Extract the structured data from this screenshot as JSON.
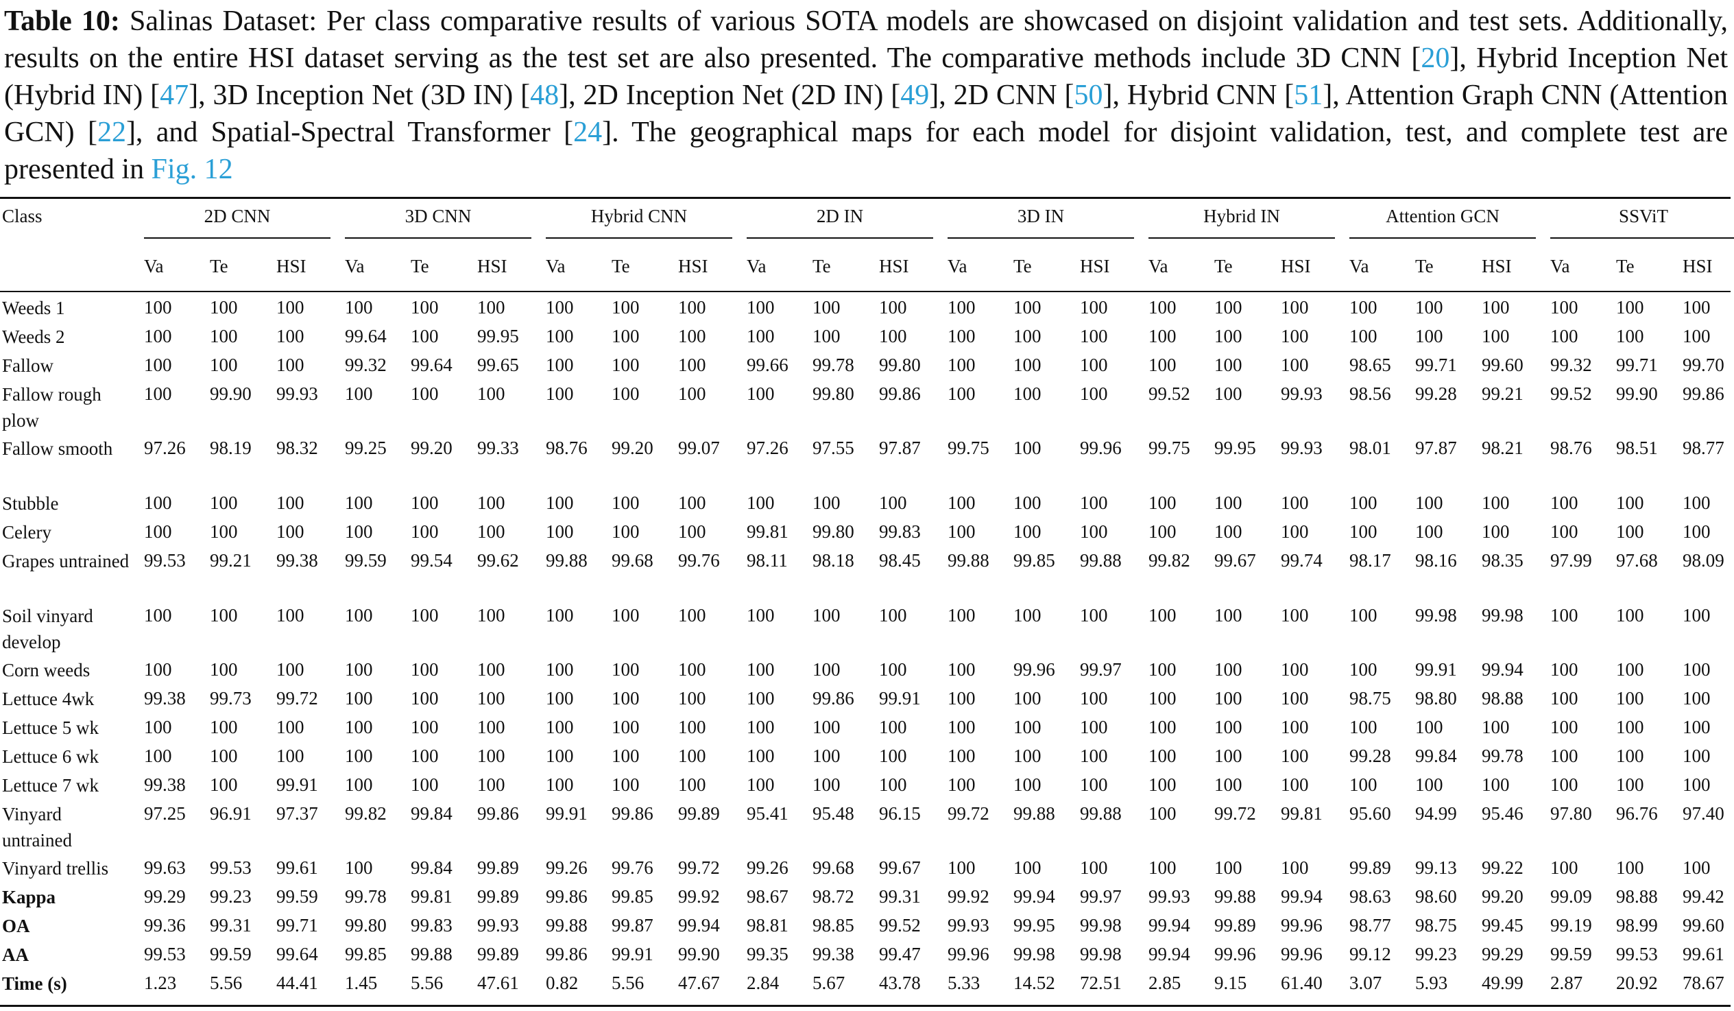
{
  "caption": {
    "label": "Table 10:",
    "segments": [
      {
        "text": " Salinas Dataset: Per class comparative results of various SOTA models are showcased on disjoint validation and test sets. Additionally, results on the entire HSI dataset serving as the test set are also presented. The comparative methods include 3D CNN [",
        "link": false
      },
      {
        "text": "20",
        "link": true
      },
      {
        "text": "], Hybrid Inception Net (Hybrid IN) [",
        "link": false
      },
      {
        "text": "47",
        "link": true
      },
      {
        "text": "], 3D Inception Net (3D IN) [",
        "link": false
      },
      {
        "text": "48",
        "link": true
      },
      {
        "text": "], 2D Inception Net (2D IN) [",
        "link": false
      },
      {
        "text": "49",
        "link": true
      },
      {
        "text": "], 2D CNN [",
        "link": false
      },
      {
        "text": "50",
        "link": true
      },
      {
        "text": "], Hybrid CNN [",
        "link": false
      },
      {
        "text": "51",
        "link": true
      },
      {
        "text": "], Attention Graph CNN (Attention GCN) [",
        "link": false
      },
      {
        "text": "22",
        "link": true
      },
      {
        "text": "], and Spatial-Spectral Transformer [",
        "link": false
      },
      {
        "text": "24",
        "link": true
      },
      {
        "text": "]. The geographical maps for each model for disjoint validation, test, and complete test are presented in ",
        "link": false
      },
      {
        "text": "Fig. 12",
        "link": true
      }
    ]
  },
  "table": {
    "class_header": "Class",
    "models": [
      "2D CNN",
      "3D CNN",
      "Hybrid CNN",
      "2D IN",
      "3D IN",
      "Hybrid IN",
      "Attention GCN",
      "SSViT"
    ],
    "subheaders": [
      "Va",
      "Te",
      "HSI"
    ],
    "rows": [
      {
        "label": "Weeds 1",
        "bold": false,
        "values": [
          "100",
          "100",
          "100",
          "100",
          "100",
          "100",
          "100",
          "100",
          "100",
          "100",
          "100",
          "100",
          "100",
          "100",
          "100",
          "100",
          "100",
          "100",
          "100",
          "100",
          "100",
          "100",
          "100",
          "100"
        ]
      },
      {
        "label": "Weeds 2",
        "bold": false,
        "values": [
          "100",
          "100",
          "100",
          "99.64",
          "100",
          "99.95",
          "100",
          "100",
          "100",
          "100",
          "100",
          "100",
          "100",
          "100",
          "100",
          "100",
          "100",
          "100",
          "100",
          "100",
          "100",
          "100",
          "100",
          "100"
        ]
      },
      {
        "label": "Fallow",
        "bold": false,
        "values": [
          "100",
          "100",
          "100",
          "99.32",
          "99.64",
          "99.65",
          "100",
          "100",
          "100",
          "99.66",
          "99.78",
          "99.80",
          "100",
          "100",
          "100",
          "100",
          "100",
          "100",
          "98.65",
          "99.71",
          "99.60",
          "99.32",
          "99.71",
          "99.70"
        ]
      },
      {
        "label": "Fallow rough plow",
        "bold": false,
        "values": [
          "100",
          "99.90",
          "99.93",
          "100",
          "100",
          "100",
          "100",
          "100",
          "100",
          "100",
          "99.80",
          "99.86",
          "100",
          "100",
          "100",
          "99.52",
          "100",
          "99.93",
          "98.56",
          "99.28",
          "99.21",
          "99.52",
          "99.90",
          "99.86"
        ]
      },
      {
        "label": "Fallow smooth",
        "bold": false,
        "values": [
          "97.26",
          "98.19",
          "98.32",
          "99.25",
          "99.20",
          "99.33",
          "98.76",
          "99.20",
          "99.07",
          "97.26",
          "97.55",
          "97.87",
          "99.75",
          "100",
          "99.96",
          "99.75",
          "99.95",
          "99.93",
          "98.01",
          "97.87",
          "98.21",
          "98.76",
          "98.51",
          "98.77"
        ]
      },
      {
        "label": "Stubble",
        "bold": false,
        "values": [
          "100",
          "100",
          "100",
          "100",
          "100",
          "100",
          "100",
          "100",
          "100",
          "100",
          "100",
          "100",
          "100",
          "100",
          "100",
          "100",
          "100",
          "100",
          "100",
          "100",
          "100",
          "100",
          "100",
          "100"
        ]
      },
      {
        "label": "Celery",
        "bold": false,
        "values": [
          "100",
          "100",
          "100",
          "100",
          "100",
          "100",
          "100",
          "100",
          "100",
          "99.81",
          "99.80",
          "99.83",
          "100",
          "100",
          "100",
          "100",
          "100",
          "100",
          "100",
          "100",
          "100",
          "100",
          "100",
          "100"
        ]
      },
      {
        "label": "Grapes untrained",
        "bold": false,
        "values": [
          "99.53",
          "99.21",
          "99.38",
          "99.59",
          "99.54",
          "99.62",
          "99.88",
          "99.68",
          "99.76",
          "98.11",
          "98.18",
          "98.45",
          "99.88",
          "99.85",
          "99.88",
          "99.82",
          "99.67",
          "99.74",
          "98.17",
          "98.16",
          "98.35",
          "97.99",
          "97.68",
          "98.09"
        ]
      },
      {
        "label": "Soil vinyard develop",
        "bold": false,
        "values": [
          "100",
          "100",
          "100",
          "100",
          "100",
          "100",
          "100",
          "100",
          "100",
          "100",
          "100",
          "100",
          "100",
          "100",
          "100",
          "100",
          "100",
          "100",
          "100",
          "99.98",
          "99.98",
          "100",
          "100",
          "100"
        ]
      },
      {
        "label": "Corn weeds",
        "bold": false,
        "values": [
          "100",
          "100",
          "100",
          "100",
          "100",
          "100",
          "100",
          "100",
          "100",
          "100",
          "100",
          "100",
          "100",
          "99.96",
          "99.97",
          "100",
          "100",
          "100",
          "100",
          "99.91",
          "99.94",
          "100",
          "100",
          "100"
        ]
      },
      {
        "label": "Lettuce 4wk",
        "bold": false,
        "values": [
          "99.38",
          "99.73",
          "99.72",
          "100",
          "100",
          "100",
          "100",
          "100",
          "100",
          "100",
          "99.86",
          "99.91",
          "100",
          "100",
          "100",
          "100",
          "100",
          "100",
          "98.75",
          "98.80",
          "98.88",
          "100",
          "100",
          "100"
        ]
      },
      {
        "label": "Lettuce 5 wk",
        "bold": false,
        "values": [
          "100",
          "100",
          "100",
          "100",
          "100",
          "100",
          "100",
          "100",
          "100",
          "100",
          "100",
          "100",
          "100",
          "100",
          "100",
          "100",
          "100",
          "100",
          "100",
          "100",
          "100",
          "100",
          "100",
          "100"
        ]
      },
      {
        "label": "Lettuce 6 wk",
        "bold": false,
        "values": [
          "100",
          "100",
          "100",
          "100",
          "100",
          "100",
          "100",
          "100",
          "100",
          "100",
          "100",
          "100",
          "100",
          "100",
          "100",
          "100",
          "100",
          "100",
          "99.28",
          "99.84",
          "99.78",
          "100",
          "100",
          "100"
        ]
      },
      {
        "label": "Lettuce 7 wk",
        "bold": false,
        "values": [
          "99.38",
          "100",
          "99.91",
          "100",
          "100",
          "100",
          "100",
          "100",
          "100",
          "100",
          "100",
          "100",
          "100",
          "100",
          "100",
          "100",
          "100",
          "100",
          "100",
          "100",
          "100",
          "100",
          "100",
          "100"
        ]
      },
      {
        "label": "Vinyard untrained",
        "bold": false,
        "values": [
          "97.25",
          "96.91",
          "97.37",
          "99.82",
          "99.84",
          "99.86",
          "99.91",
          "99.86",
          "99.89",
          "95.41",
          "95.48",
          "96.15",
          "99.72",
          "99.88",
          "99.88",
          "100",
          "99.72",
          "99.81",
          "95.60",
          "94.99",
          "95.46",
          "97.80",
          "96.76",
          "97.40"
        ]
      },
      {
        "label": "Vinyard trellis",
        "bold": false,
        "values": [
          "99.63",
          "99.53",
          "99.61",
          "100",
          "99.84",
          "99.89",
          "99.26",
          "99.76",
          "99.72",
          "99.26",
          "99.68",
          "99.67",
          "100",
          "100",
          "100",
          "100",
          "100",
          "100",
          "99.89",
          "99.13",
          "99.22",
          "100",
          "100",
          "100"
        ]
      },
      {
        "label": "Kappa",
        "bold": true,
        "values": [
          "99.29",
          "99.23",
          "99.59",
          "99.78",
          "99.81",
          "99.89",
          "99.86",
          "99.85",
          "99.92",
          "98.67",
          "98.72",
          "99.31",
          "99.92",
          "99.94",
          "99.97",
          "99.93",
          "99.88",
          "99.94",
          "98.63",
          "98.60",
          "99.20",
          "99.09",
          "98.88",
          "99.42"
        ]
      },
      {
        "label": "OA",
        "bold": true,
        "values": [
          "99.36",
          "99.31",
          "99.71",
          "99.80",
          "99.83",
          "99.93",
          "99.88",
          "99.87",
          "99.94",
          "98.81",
          "98.85",
          "99.52",
          "99.93",
          "99.95",
          "99.98",
          "99.94",
          "99.89",
          "99.96",
          "98.77",
          "98.75",
          "99.45",
          "99.19",
          "98.99",
          "99.60"
        ]
      },
      {
        "label": "AA",
        "bold": true,
        "values": [
          "99.53",
          "99.59",
          "99.64",
          "99.85",
          "99.88",
          "99.89",
          "99.86",
          "99.91",
          "99.90",
          "99.35",
          "99.38",
          "99.47",
          "99.96",
          "99.98",
          "99.98",
          "99.94",
          "99.96",
          "99.96",
          "99.12",
          "99.23",
          "99.29",
          "99.59",
          "99.53",
          "99.61"
        ]
      },
      {
        "label": "Time (s)",
        "bold": true,
        "values": [
          "1.23",
          "5.56",
          "44.41",
          "1.45",
          "5.56",
          "47.61",
          "0.82",
          "5.56",
          "47.67",
          "2.84",
          "5.67",
          "43.78",
          "5.33",
          "14.52",
          "72.51",
          "2.85",
          "9.15",
          "61.40",
          "3.07",
          "5.93",
          "49.99",
          "2.87",
          "20.92",
          "78.67"
        ]
      }
    ]
  }
}
